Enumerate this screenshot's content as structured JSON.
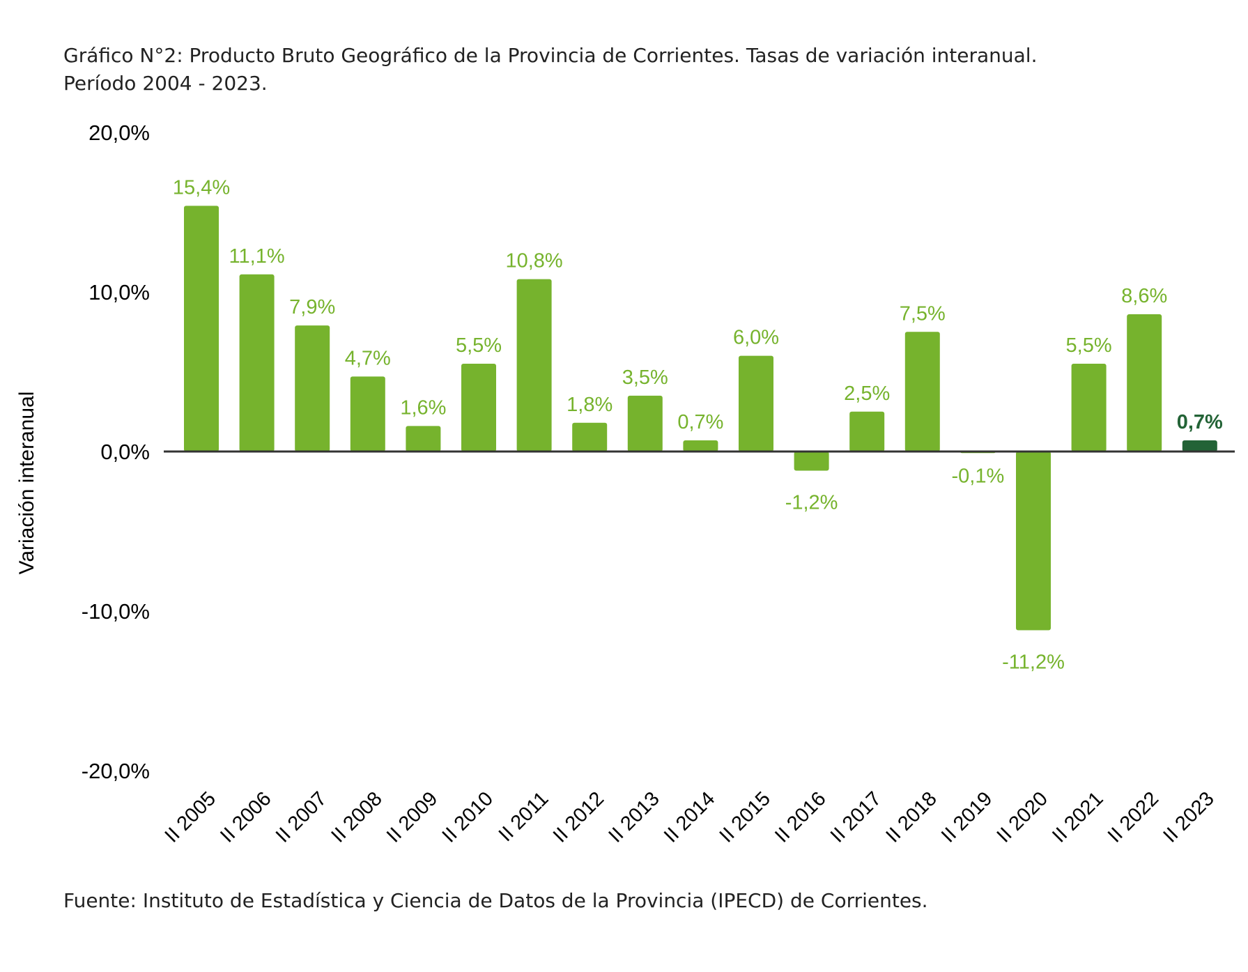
{
  "title_line1": "Gráfico N°2: Producto Bruto Geográfico de la Provincia de Corrientes. Tasas de variación interanual.",
  "title_line2": "Período 2004 - 2023.",
  "source": "Fuente: Instituto de Estadística y Ciencia de Datos de la Provincia (IPECD) de Corrientes.",
  "chart_data": {
    "type": "bar",
    "ylabel": "Variación interanual",
    "ylim": [
      -20,
      20
    ],
    "y_ticks": [
      "20,0%",
      "10,0%",
      "0,0%",
      "-10,0%",
      "-20,0%"
    ],
    "y_tick_values": [
      20,
      10,
      0,
      -10,
      -20
    ],
    "grid": false,
    "categories": [
      "II 2005",
      "II 2006",
      "II 2007",
      "II 2008",
      "II 2009",
      "II 2010",
      "II 2011",
      "II 2012",
      "II 2013",
      "II 2014",
      "II 2015",
      "II 2016",
      "II 2017",
      "II 2018",
      "II 2019",
      "II 2020",
      "II 2021",
      "II 2022",
      "II 2023"
    ],
    "values": [
      15.4,
      11.1,
      7.9,
      4.7,
      1.6,
      5.5,
      10.8,
      1.8,
      3.5,
      0.7,
      6.0,
      -1.2,
      2.5,
      7.5,
      -0.1,
      -11.2,
      5.5,
      8.6,
      0.7
    ],
    "labels": [
      "15,4%",
      "11,1%",
      "7,9%",
      "4,7%",
      "1,6%",
      "5,5%",
      "10,8%",
      "1,8%",
      "3,5%",
      "0,7%",
      "6,0%",
      "-1,2%",
      "2,5%",
      "7,5%",
      "-0,1%",
      "-11,2%",
      "5,5%",
      "8,6%",
      "0,7%"
    ],
    "colors": {
      "bar": "#76b32d",
      "highlight": "#236336",
      "label": "#76b32d",
      "axis": "#333333"
    },
    "highlight_index": 18
  }
}
